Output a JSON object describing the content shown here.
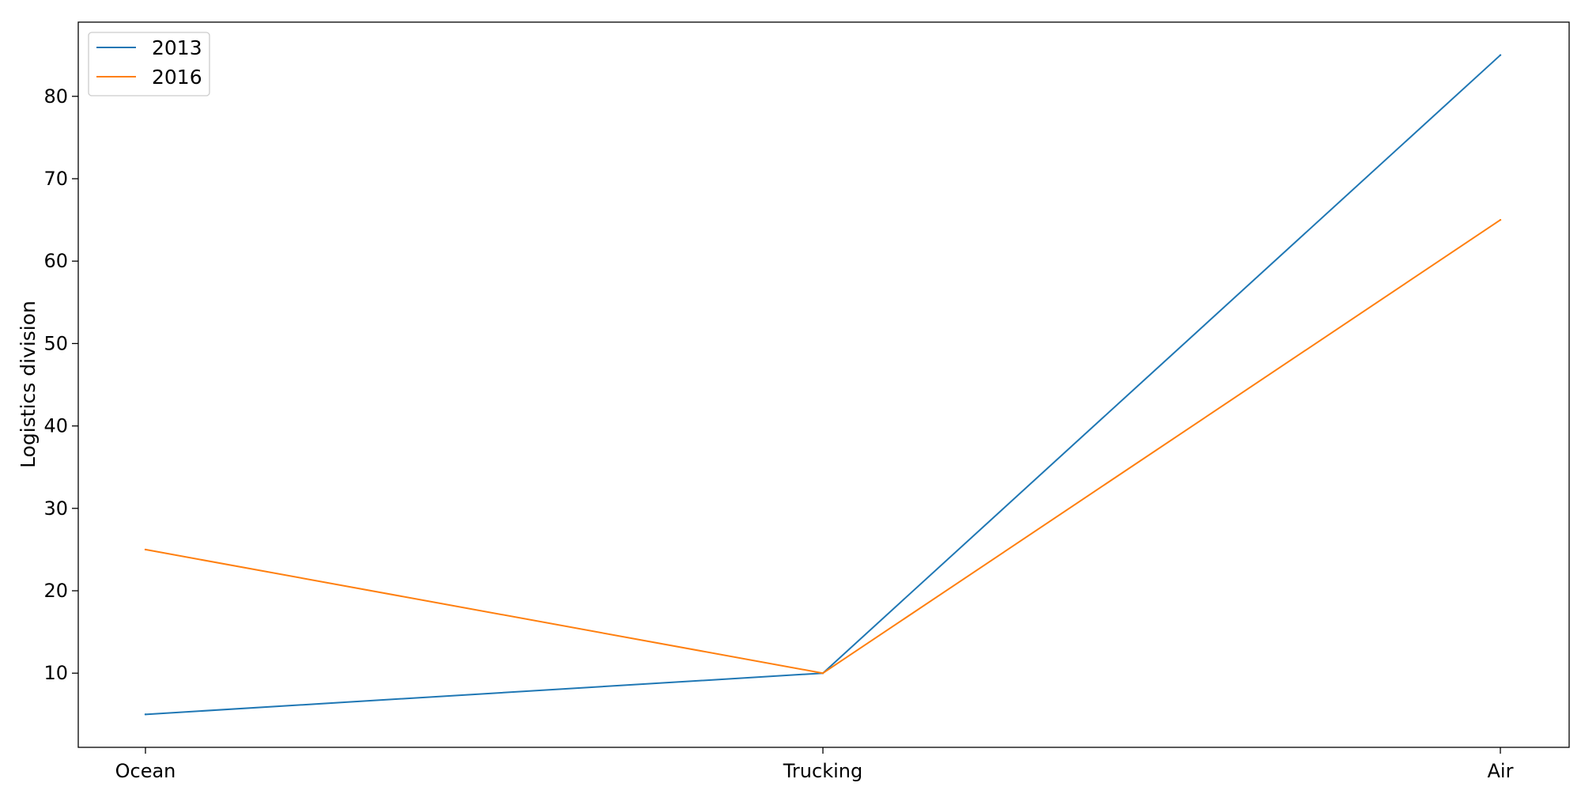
{
  "chart_data": {
    "type": "line",
    "title": "",
    "xlabel": "",
    "ylabel": "Logistics division",
    "categories": [
      "Ocean",
      "Trucking",
      "Air"
    ],
    "series": [
      {
        "name": "2013",
        "values": [
          5,
          10,
          85
        ],
        "color": "#1f77b4"
      },
      {
        "name": "2016",
        "values": [
          25,
          10,
          65
        ],
        "color": "#ff7f0e"
      }
    ],
    "y_ticks": [
      10,
      20,
      30,
      40,
      50,
      60,
      70,
      80
    ],
    "ylim": [
      1,
      89
    ],
    "grid": false,
    "legend_position": "top-left"
  }
}
